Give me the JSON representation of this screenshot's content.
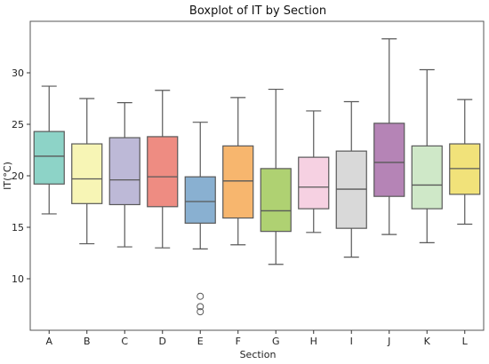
{
  "chart_data": {
    "type": "box",
    "title": "Boxplot of IT by Section",
    "xlabel": "Section",
    "ylabel": "IT(°C)",
    "ylim": [
      5.0,
      35.0
    ],
    "yticks": [
      10,
      15,
      20,
      25,
      30
    ],
    "ytick_labels": [
      "10",
      "15",
      "20",
      "25",
      "30"
    ],
    "grid": false,
    "categories": [
      "A",
      "B",
      "C",
      "D",
      "E",
      "F",
      "G",
      "H",
      "I",
      "J",
      "K",
      "L"
    ],
    "colors": [
      "#8dd3c7",
      "#f7f5b5",
      "#bdb9d7",
      "#ee8c82",
      "#89b0d1",
      "#f7b66e",
      "#afd172",
      "#f6d1e2",
      "#d9d9d9",
      "#b584b6",
      "#cfe8c8",
      "#f1e27a"
    ],
    "boxes": [
      {
        "whisker_low": 16.3,
        "q1": 19.2,
        "median": 21.9,
        "q3": 24.3,
        "whisker_high": 28.7,
        "outliers": []
      },
      {
        "whisker_low": 13.4,
        "q1": 17.3,
        "median": 19.7,
        "q3": 23.1,
        "whisker_high": 27.5,
        "outliers": []
      },
      {
        "whisker_low": 13.1,
        "q1": 17.2,
        "median": 19.6,
        "q3": 23.7,
        "whisker_high": 27.1,
        "outliers": []
      },
      {
        "whisker_low": 13.0,
        "q1": 17.0,
        "median": 19.9,
        "q3": 23.8,
        "whisker_high": 28.3,
        "outliers": []
      },
      {
        "whisker_low": 12.9,
        "q1": 15.4,
        "median": 17.5,
        "q3": 19.9,
        "whisker_high": 25.2,
        "outliers": [
          8.3,
          7.3,
          6.8
        ]
      },
      {
        "whisker_low": 13.3,
        "q1": 15.9,
        "median": 19.5,
        "q3": 22.9,
        "whisker_high": 27.6,
        "outliers": []
      },
      {
        "whisker_low": 11.4,
        "q1": 14.6,
        "median": 16.6,
        "q3": 20.7,
        "whisker_high": 28.4,
        "outliers": []
      },
      {
        "whisker_low": 14.5,
        "q1": 16.8,
        "median": 18.9,
        "q3": 21.8,
        "whisker_high": 26.3,
        "outliers": []
      },
      {
        "whisker_low": 12.1,
        "q1": 14.9,
        "median": 18.7,
        "q3": 22.4,
        "whisker_high": 27.2,
        "outliers": []
      },
      {
        "whisker_low": 14.3,
        "q1": 18.0,
        "median": 21.3,
        "q3": 25.1,
        "whisker_high": 33.3,
        "outliers": []
      },
      {
        "whisker_low": 13.5,
        "q1": 16.8,
        "median": 19.1,
        "q3": 22.9,
        "whisker_high": 30.3,
        "outliers": []
      },
      {
        "whisker_low": 15.3,
        "q1": 18.2,
        "median": 20.7,
        "q3": 23.1,
        "whisker_high": 27.4,
        "outliers": []
      }
    ]
  }
}
